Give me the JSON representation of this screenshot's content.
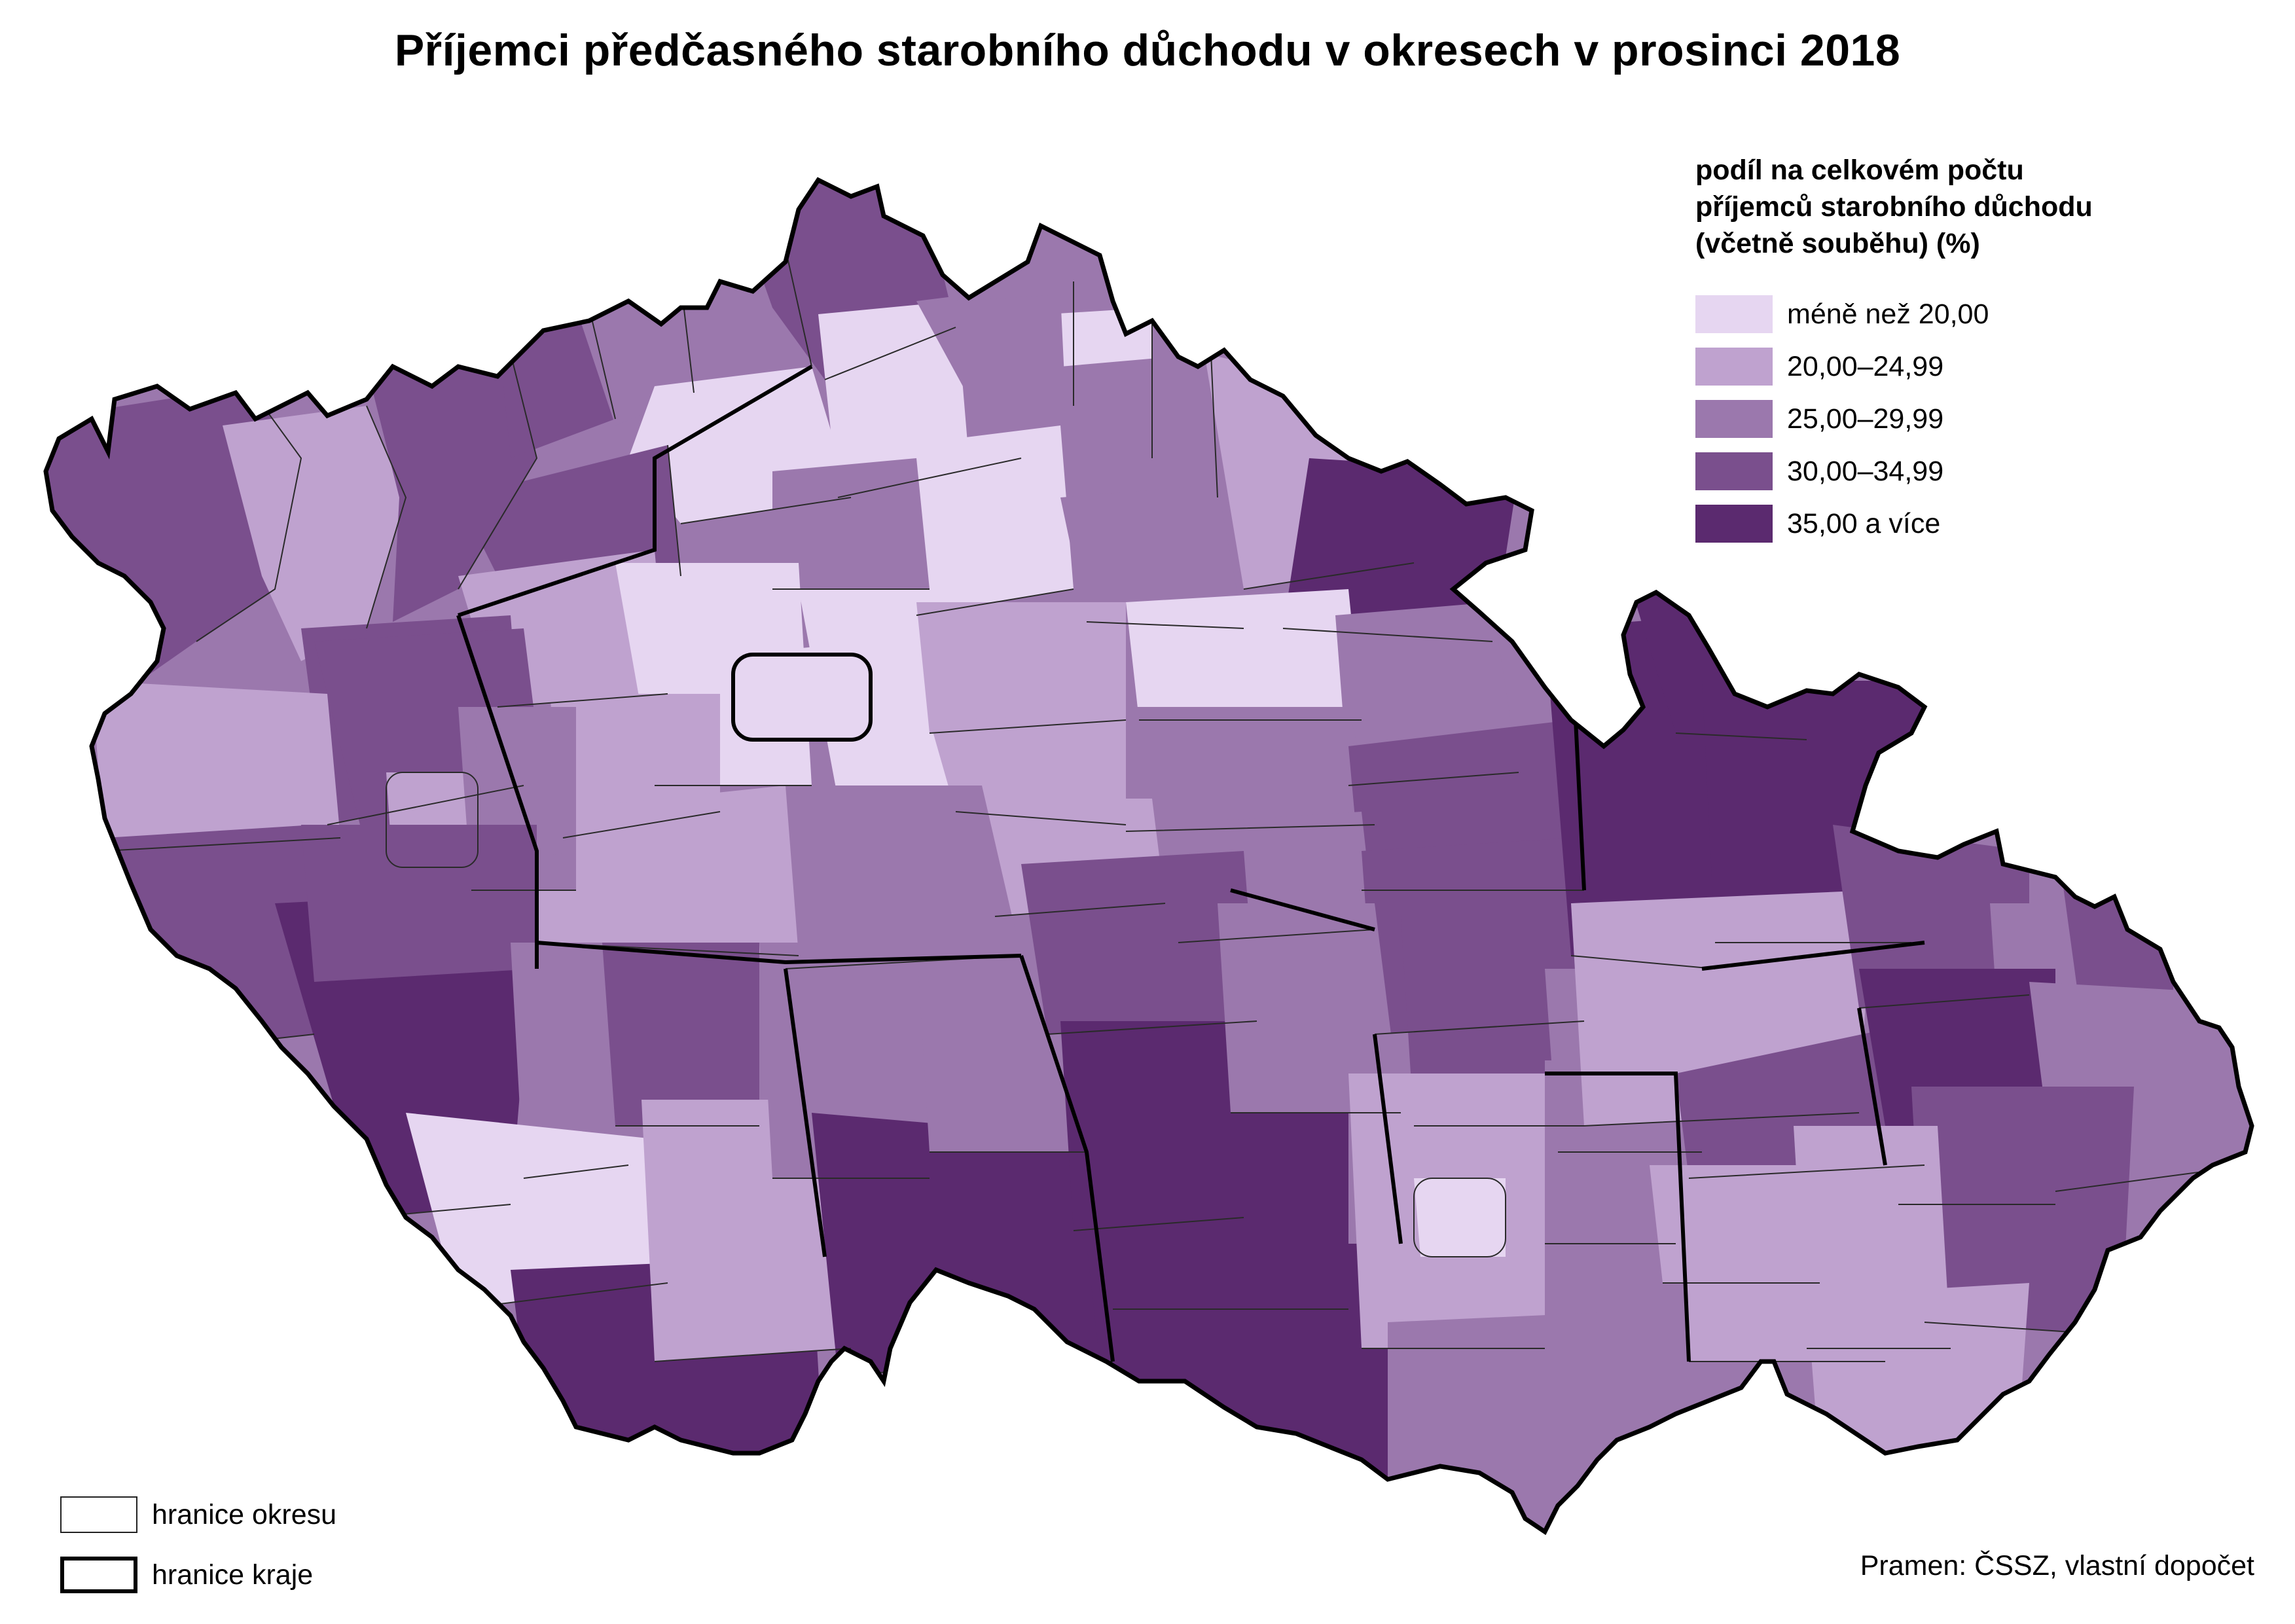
{
  "title": "Příjemci předčasného starobního důchodu v okresech v prosinci 2018",
  "legend": {
    "title_lines": [
      "podíl na celkovém počtu",
      "příjemců starobního důchodu",
      "(včetně souběhu) (%)"
    ],
    "classes": [
      {
        "label": "méně než 20,00",
        "color": "#e6d6f1"
      },
      {
        "label": "20,00–24,99",
        "color": "#bfa2cf"
      },
      {
        "label": "25,00–29,99",
        "color": "#9b78ad"
      },
      {
        "label": "30,00–34,99",
        "color": "#7a4f8d"
      },
      {
        "label": "35,00 a více",
        "color": "#5b2a6f"
      }
    ]
  },
  "border_legend": {
    "district": "hranice okresu",
    "region": "hranice kraje"
  },
  "source": "Pramen: ČSSZ, vlastní dopočet"
}
